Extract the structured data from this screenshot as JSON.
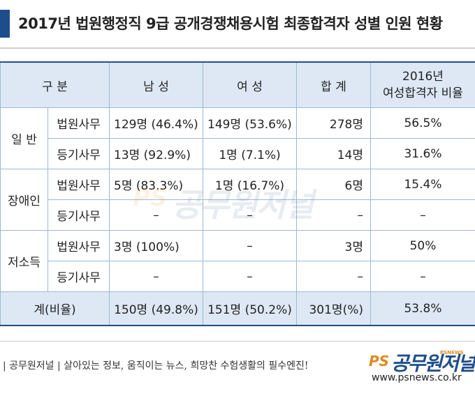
{
  "title": "2017년 법원행정직 9급 공개경쟁채용시험 최종합격자 성별 인원 현황",
  "colors": {
    "accent": "#1e4d8c",
    "header_bg": "#dde8f4",
    "border": "#9fb7d2",
    "brand_orange": "#e08a1e"
  },
  "table": {
    "headers": {
      "category": "구 분",
      "male": "남 성",
      "female": "여 성",
      "total": "합 계",
      "ratio_line1": "2016년",
      "ratio_line2": "여성합격자 비율"
    },
    "groups": [
      {
        "name": "일 반",
        "rows": [
          {
            "sub": "법원사무",
            "male": "129명 (46.4%)",
            "female": "149명 (53.6%)",
            "total": "278명",
            "ratio": "56.5%"
          },
          {
            "sub": "등기사무",
            "male": "13명 (92.9%)",
            "female": "1명 (7.1%)",
            "total": "14명",
            "ratio": "31.6%"
          }
        ]
      },
      {
        "name": "장애인",
        "rows": [
          {
            "sub": "법원사무",
            "male": "5명 (83.3%)",
            "female": "1명 (16.7%)",
            "total": "6명",
            "ratio": "15.4%"
          },
          {
            "sub": "등기사무",
            "male": "–",
            "female": "–",
            "total": "–",
            "ratio": "–"
          }
        ]
      },
      {
        "name": "저소득",
        "rows": [
          {
            "sub": "법원사무",
            "male": "3명 (100%)",
            "female": "–",
            "total": "3명",
            "ratio": "50%"
          },
          {
            "sub": "등기사무",
            "male": "–",
            "female": "–",
            "total": "–",
            "ratio": "–"
          }
        ]
      }
    ],
    "total_row": {
      "label": "계(비율)",
      "male": "150명 (49.8%)",
      "female": "151명 (50.2%)",
      "total": "301명(%)",
      "ratio": "53.8%"
    }
  },
  "watermark": {
    "ps": "PS",
    "name": "공무원저널"
  },
  "footer": {
    "slogan": "| 공무원저널 | 살아있는 정보, 움직이는 뉴스, 희망찬 수험생활의 필수엔진!",
    "logo_ps": "PS",
    "logo_name": "공무원저널",
    "logo_tag": "PSNEWS",
    "url": "www.psnews.co.kr"
  }
}
